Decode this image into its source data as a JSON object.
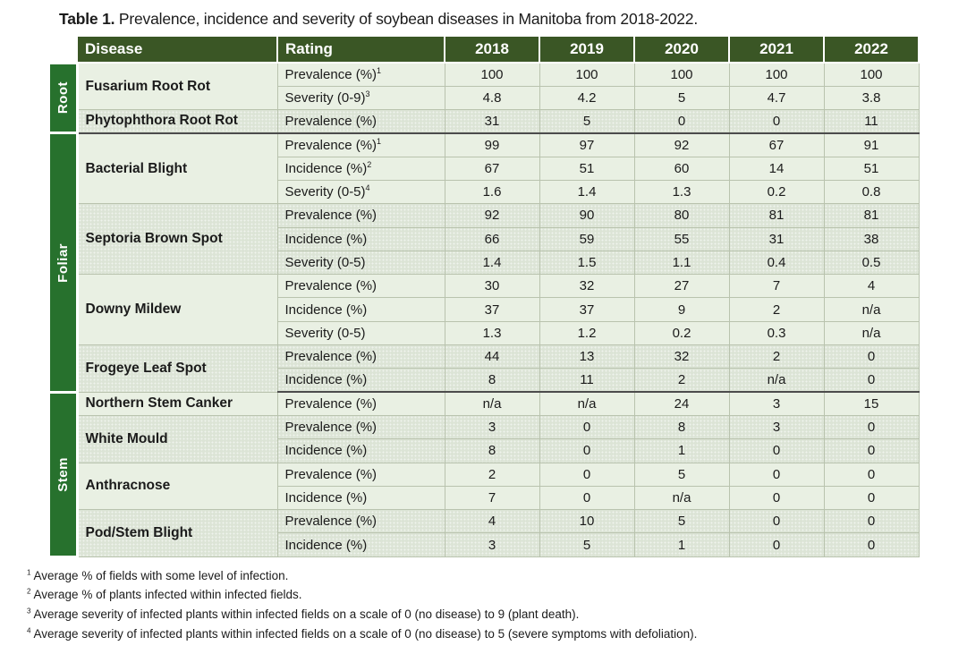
{
  "page": {
    "title_label": "Table 1.",
    "title_rest": " Prevalence, incidence and severity of soybean diseases in Manitoba from 2018-2022."
  },
  "chart_data": {
    "type": "table",
    "title": "Table 1. Prevalence, incidence and severity of soybean diseases in Manitoba from 2018-2022.",
    "columns": [
      "Disease",
      "Rating",
      "2018",
      "2019",
      "2020",
      "2021",
      "2022"
    ],
    "sections": [
      {
        "name": "Root",
        "diseases": [
          {
            "name": "Fusarium Root Rot",
            "shade": "light",
            "rows": [
              {
                "rating": "Prevalence (%)",
                "sup": "1",
                "values": [
                  "100",
                  "100",
                  "100",
                  "100",
                  "100"
                ]
              },
              {
                "rating": "Severity (0-9)",
                "sup": "3",
                "values": [
                  "4.8",
                  "4.2",
                  "5",
                  "4.7",
                  "3.8"
                ]
              }
            ]
          },
          {
            "name": "Phytophthora Root Rot",
            "shade": "dark",
            "rows": [
              {
                "rating": "Prevalence (%)",
                "sup": "",
                "values": [
                  "31",
                  "5",
                  "0",
                  "0",
                  "11"
                ]
              }
            ]
          }
        ]
      },
      {
        "name": "Foliar",
        "diseases": [
          {
            "name": "Bacterial Blight",
            "shade": "light",
            "rows": [
              {
                "rating": "Prevalence (%)",
                "sup": "1",
                "values": [
                  "99",
                  "97",
                  "92",
                  "67",
                  "91"
                ]
              },
              {
                "rating": "Incidence (%)",
                "sup": "2",
                "values": [
                  "67",
                  "51",
                  "60",
                  "14",
                  "51"
                ]
              },
              {
                "rating": "Severity (0-5)",
                "sup": "4",
                "values": [
                  "1.6",
                  "1.4",
                  "1.3",
                  "0.2",
                  "0.8"
                ]
              }
            ]
          },
          {
            "name": "Septoria Brown Spot",
            "shade": "dark",
            "rows": [
              {
                "rating": "Prevalence (%)",
                "sup": "",
                "values": [
                  "92",
                  "90",
                  "80",
                  "81",
                  "81"
                ]
              },
              {
                "rating": "Incidence (%)",
                "sup": "",
                "values": [
                  "66",
                  "59",
                  "55",
                  "31",
                  "38"
                ]
              },
              {
                "rating": "Severity (0-5)",
                "sup": "",
                "values": [
                  "1.4",
                  "1.5",
                  "1.1",
                  "0.4",
                  "0.5"
                ]
              }
            ]
          },
          {
            "name": "Downy Mildew",
            "shade": "light",
            "rows": [
              {
                "rating": "Prevalence (%)",
                "sup": "",
                "values": [
                  "30",
                  "32",
                  "27",
                  "7",
                  "4"
                ]
              },
              {
                "rating": "Incidence (%)",
                "sup": "",
                "values": [
                  "37",
                  "37",
                  "9",
                  "2",
                  "n/a"
                ]
              },
              {
                "rating": "Severity (0-5)",
                "sup": "",
                "values": [
                  "1.3",
                  "1.2",
                  "0.2",
                  "0.3",
                  "n/a"
                ]
              }
            ]
          },
          {
            "name": "Frogeye Leaf Spot",
            "shade": "dark",
            "rows": [
              {
                "rating": "Prevalence (%)",
                "sup": "",
                "values": [
                  "44",
                  "13",
                  "32",
                  "2",
                  "0"
                ]
              },
              {
                "rating": "Incidence (%)",
                "sup": "",
                "values": [
                  "8",
                  "11",
                  "2",
                  "n/a",
                  "0"
                ]
              }
            ]
          }
        ]
      },
      {
        "name": "Stem",
        "diseases": [
          {
            "name": "Northern Stem Canker",
            "shade": "light",
            "rows": [
              {
                "rating": "Prevalence (%)",
                "sup": "",
                "values": [
                  "n/a",
                  "n/a",
                  "24",
                  "3",
                  "15"
                ]
              }
            ]
          },
          {
            "name": "White Mould",
            "shade": "dark",
            "rows": [
              {
                "rating": "Prevalence (%)",
                "sup": "",
                "values": [
                  "3",
                  "0",
                  "8",
                  "3",
                  "0"
                ]
              },
              {
                "rating": "Incidence (%)",
                "sup": "",
                "values": [
                  "8",
                  "0",
                  "1",
                  "0",
                  "0"
                ]
              }
            ]
          },
          {
            "name": "Anthracnose",
            "shade": "light",
            "rows": [
              {
                "rating": "Prevalence (%)",
                "sup": "",
                "values": [
                  "2",
                  "0",
                  "5",
                  "0",
                  "0"
                ]
              },
              {
                "rating": "Incidence (%)",
                "sup": "",
                "values": [
                  "7",
                  "0",
                  "n/a",
                  "0",
                  "0"
                ]
              }
            ]
          },
          {
            "name": "Pod/Stem Blight",
            "shade": "dark",
            "rows": [
              {
                "rating": "Prevalence (%)",
                "sup": "",
                "values": [
                  "4",
                  "10",
                  "5",
                  "0",
                  "0"
                ]
              },
              {
                "rating": "Incidence (%)",
                "sup": "",
                "values": [
                  "3",
                  "5",
                  "1",
                  "0",
                  "0"
                ]
              }
            ]
          }
        ]
      }
    ]
  },
  "footnotes": [
    {
      "sup": "1",
      "text": "Average % of fields with some level of infection."
    },
    {
      "sup": "2",
      "text": "Average % of plants infected within infected fields."
    },
    {
      "sup": "3",
      "text": "Average severity of infected plants within infected fields on a scale of 0 (no disease) to 9 (plant death)."
    },
    {
      "sup": "4",
      "text": "Average severity of infected plants within infected fields on a scale of 0 (no disease) to 5 (severe symptoms with defoliation)."
    }
  ],
  "colors": {
    "header_green": "#3A5625",
    "sidebar_green": "#27712D",
    "row_light": "#E9F0E3",
    "row_dark": "#DCE4D6",
    "grid_line": "#B9C3AE",
    "section_line": "#4C4C4C",
    "header_text": "#FFFFFF",
    "body_text": "#1B1B1B"
  }
}
